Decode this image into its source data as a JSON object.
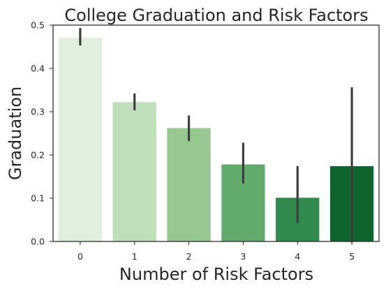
{
  "chart_data": {
    "type": "bar",
    "title": "College Graduation and Risk Factors",
    "xlabel": "Number of Risk Factors",
    "ylabel": "Graduation",
    "categories": [
      "0",
      "1",
      "2",
      "3",
      "4",
      "5"
    ],
    "values": [
      0.471,
      0.322,
      0.262,
      0.178,
      0.101,
      0.174
    ],
    "error_low": [
      0.455,
      0.305,
      0.234,
      0.136,
      0.045,
      0.0
    ],
    "error_high": [
      0.491,
      0.34,
      0.289,
      0.226,
      0.172,
      0.354
    ],
    "colors": [
      "#e1f0de",
      "#bfdfbb",
      "#96c890",
      "#63aa6d",
      "#318b4f",
      "#0e642f"
    ],
    "error_color": "#3f3f3f",
    "ylim": [
      0,
      0.5
    ],
    "yticks": [
      "0.0",
      "0.1",
      "0.2",
      "0.3",
      "0.4",
      "0.5"
    ],
    "grid": false,
    "legend": "none"
  }
}
